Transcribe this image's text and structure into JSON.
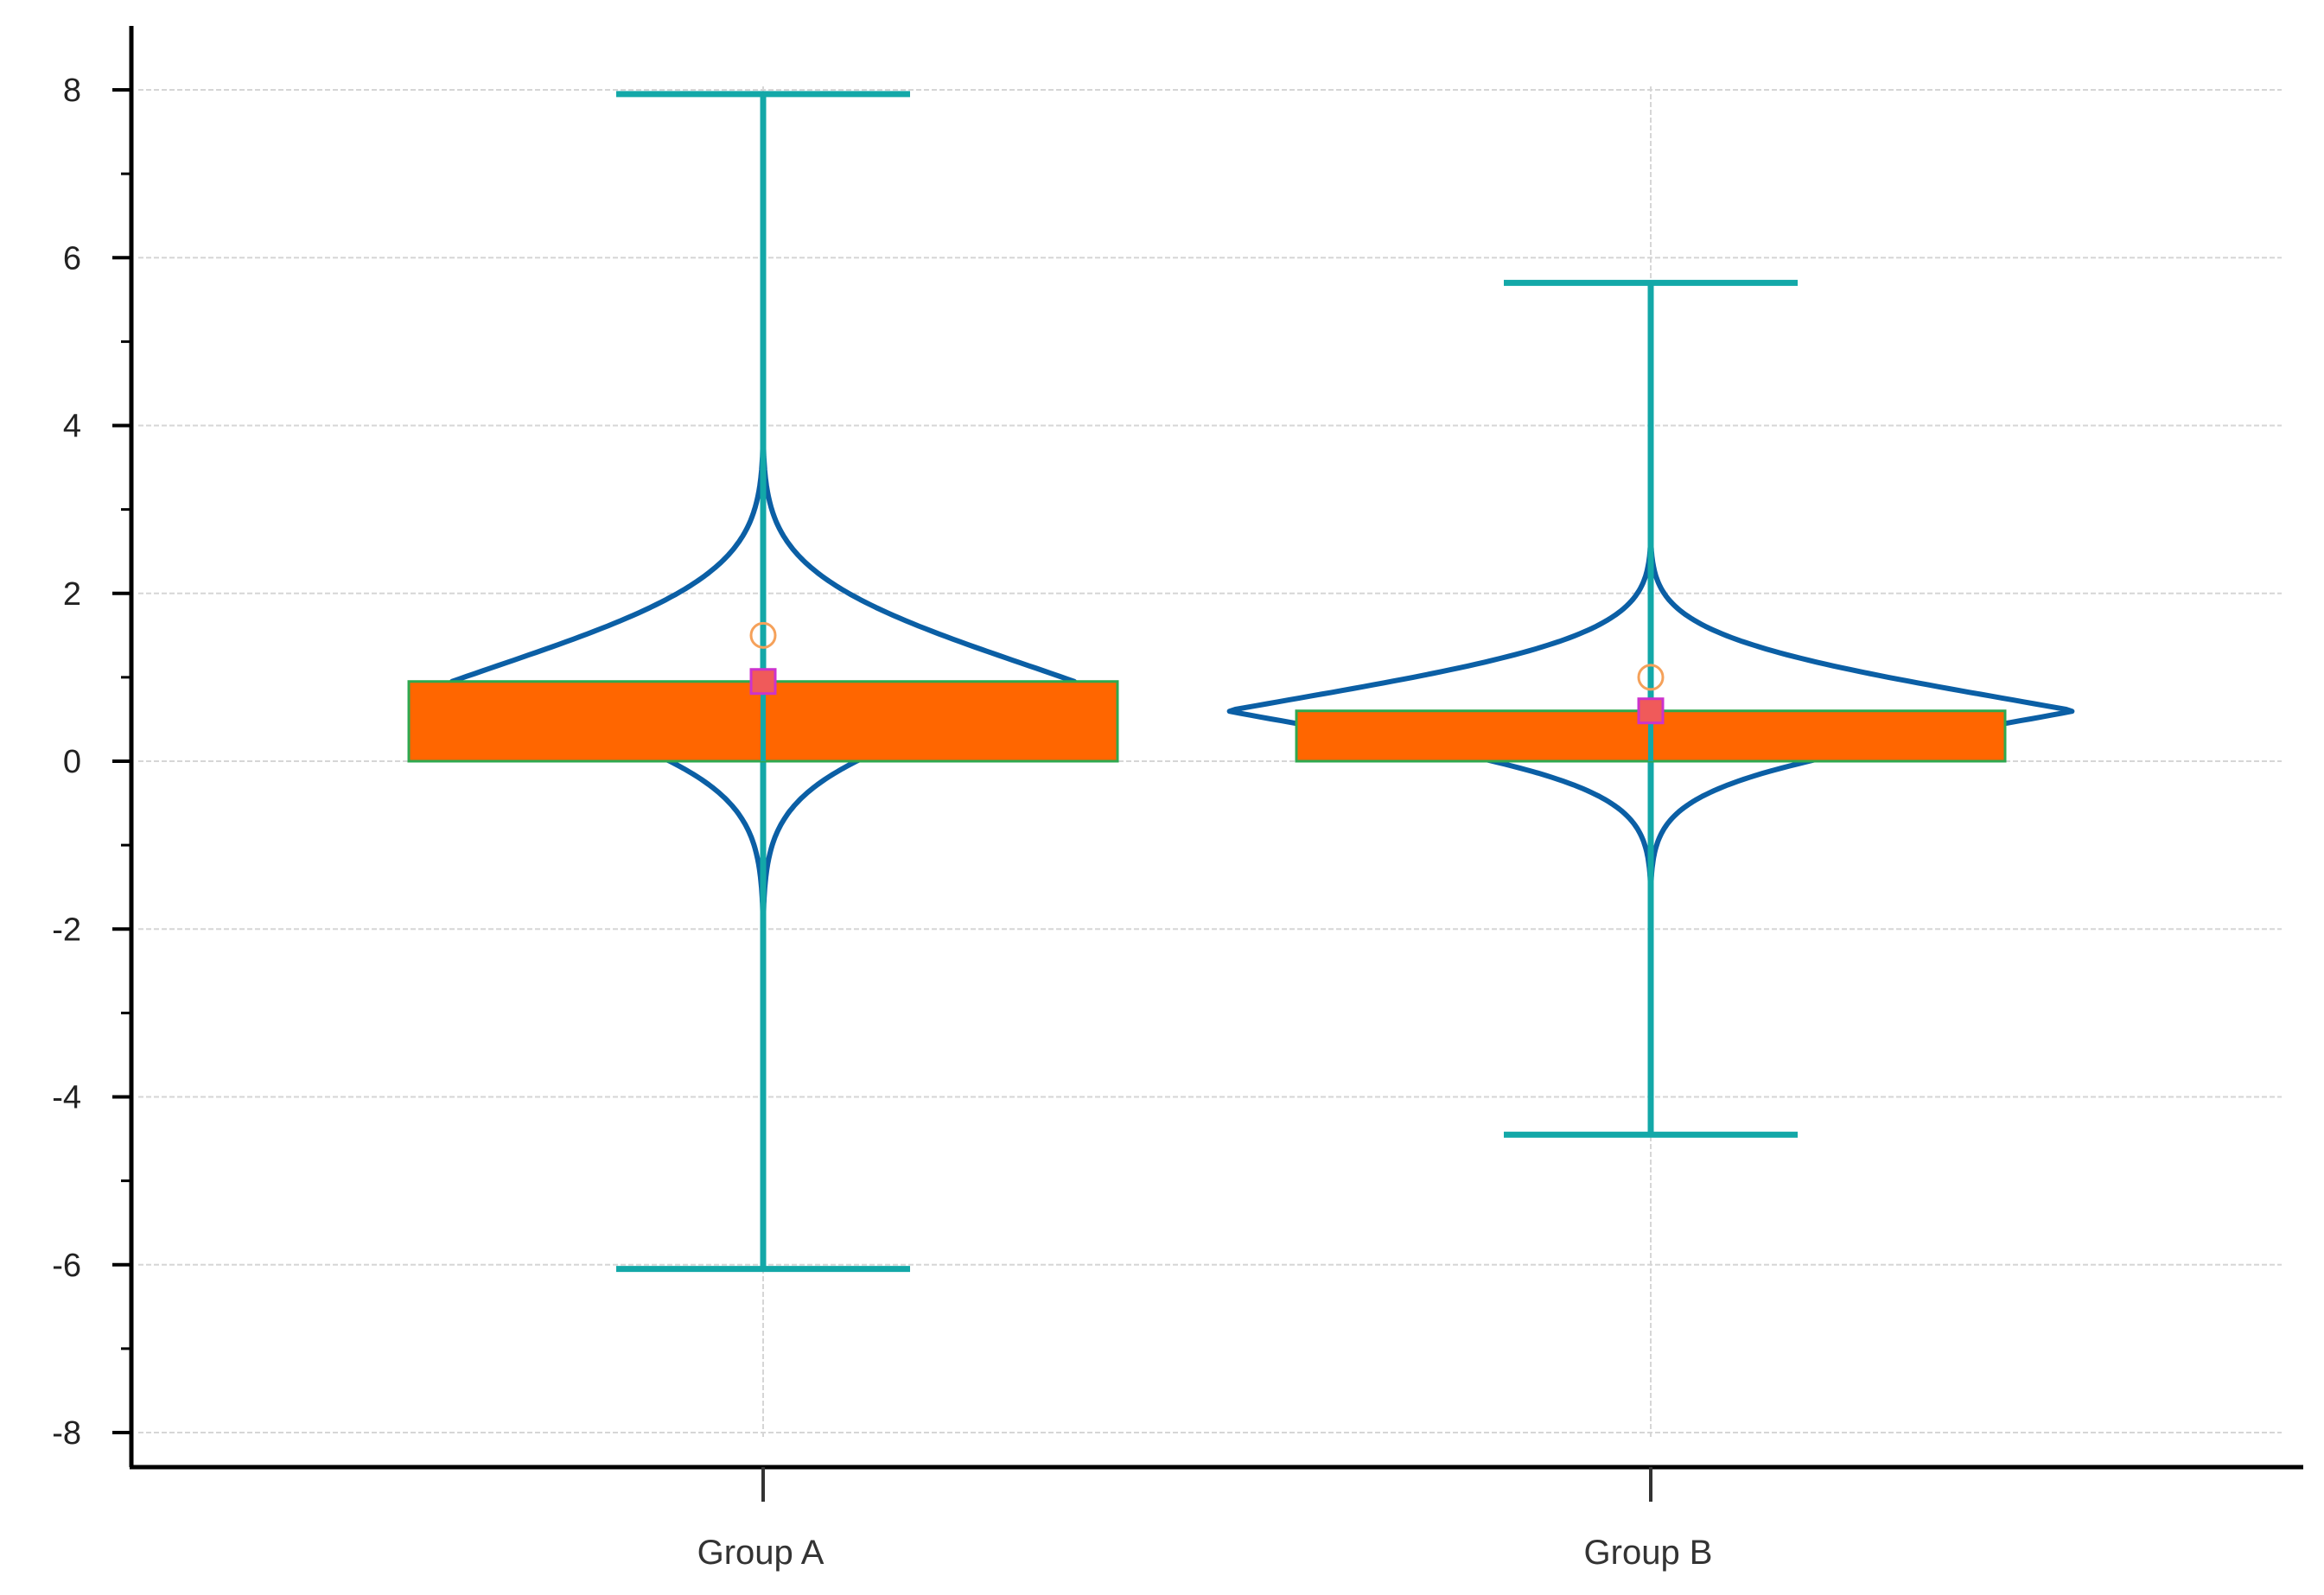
{
  "chart_data": {
    "type": "violin-box",
    "title": "",
    "xlabel": "",
    "ylabel": "",
    "ylim": [
      -8.4,
      8.7
    ],
    "yticks": [
      8,
      6,
      4,
      2,
      0,
      -2,
      -4,
      -6,
      -8
    ],
    "ytick_labels": [
      "8",
      "6",
      "4",
      "2",
      "0",
      "-2",
      "-4",
      "-6",
      "-8"
    ],
    "grid": true,
    "categories": [
      "Group A",
      "Group B"
    ],
    "groups": [
      {
        "name": "Group A",
        "box_q1": 0.0,
        "box_q3": 0.95,
        "median": 0.95,
        "mean": 1.5,
        "whisker_low": -6.05,
        "whisker_high": 7.95,
        "violin_min": -2.2,
        "violin_max": 4.1,
        "violin_mode": 0.95,
        "violin_max_half_width": 0.7
      },
      {
        "name": "Group B",
        "box_q1": 0.0,
        "box_q3": 0.6,
        "median": 0.6,
        "mean": 1.0,
        "whisker_low": -4.45,
        "whisker_high": 5.7,
        "violin_min": -1.7,
        "violin_max": 2.8,
        "violin_mode": 0.6,
        "violin_max_half_width": 0.94
      }
    ],
    "colors": {
      "box_fill": "#ff6600",
      "box_stroke": "#2fa84f",
      "whisker": "#13a8a8",
      "violin": "#0b5fa5",
      "median_marker": "#f05a5a",
      "median_marker_stroke": "#cc33cc",
      "mean_marker": "#f5a15a",
      "grid": "#d6d6d6",
      "axis": "#000000"
    }
  }
}
